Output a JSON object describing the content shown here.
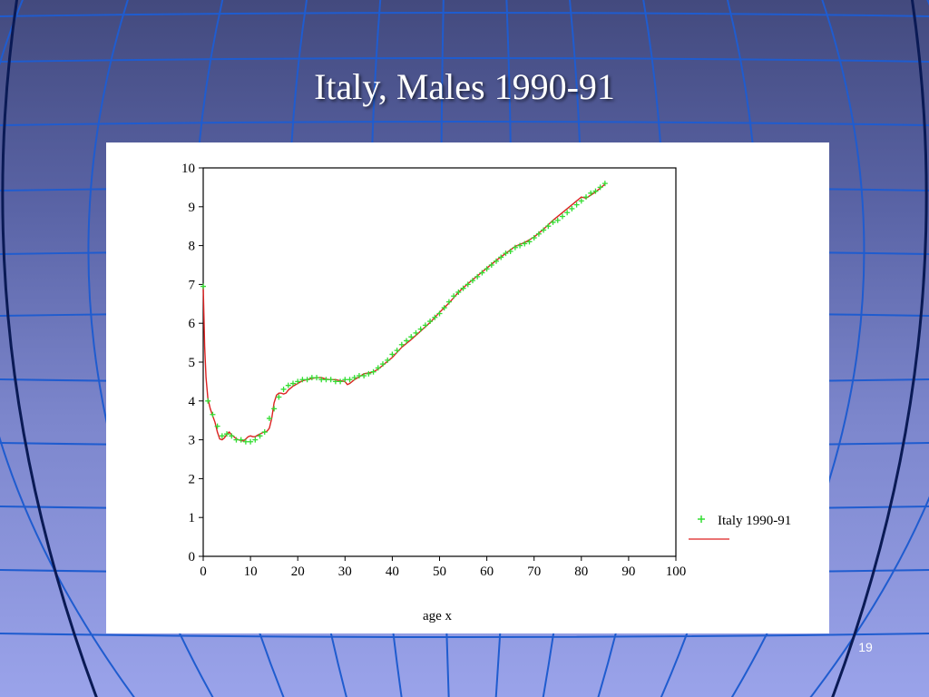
{
  "slide": {
    "title": "Italy, Males 1990-91",
    "page_number": "19"
  },
  "colors": {
    "background_top": "#434a7e",
    "background_bottom": "#9aa3ea",
    "grid_lines": "#1f5ccf",
    "data_points": "#33dd33",
    "fitted_line": "#dd2222"
  },
  "chart_data": {
    "type": "scatter",
    "title": "",
    "xlabel": "age x",
    "ylabel": "",
    "xlim": [
      0,
      100
    ],
    "ylim": [
      0,
      10
    ],
    "x_ticks": [
      0,
      10,
      20,
      30,
      40,
      50,
      60,
      70,
      80,
      90,
      100
    ],
    "y_ticks": [
      0,
      1,
      2,
      3,
      4,
      5,
      6,
      7,
      8,
      9,
      10
    ],
    "grid": false,
    "legend_position": "right",
    "series": [
      {
        "name": "Italy 1990-91",
        "marker": "plus",
        "x": [
          0,
          1,
          2,
          3,
          4,
          5,
          6,
          7,
          8,
          9,
          10,
          11,
          12,
          13,
          14,
          15,
          16,
          17,
          18,
          19,
          20,
          21,
          22,
          23,
          24,
          25,
          26,
          27,
          28,
          29,
          30,
          31,
          32,
          33,
          34,
          35,
          36,
          37,
          38,
          39,
          40,
          41,
          42,
          43,
          44,
          45,
          46,
          47,
          48,
          49,
          50,
          51,
          52,
          53,
          54,
          55,
          56,
          57,
          58,
          59,
          60,
          61,
          62,
          63,
          64,
          65,
          66,
          67,
          68,
          69,
          70,
          71,
          72,
          73,
          74,
          75,
          76,
          77,
          78,
          79,
          80,
          81,
          82,
          83,
          84,
          85
        ],
        "y": [
          6.95,
          4.0,
          3.65,
          3.35,
          3.1,
          3.15,
          3.1,
          3.0,
          3.0,
          2.95,
          2.95,
          3.0,
          3.1,
          3.2,
          3.55,
          3.8,
          4.1,
          4.3,
          4.4,
          4.45,
          4.5,
          4.55,
          4.55,
          4.6,
          4.6,
          4.55,
          4.55,
          4.55,
          4.5,
          4.5,
          4.55,
          4.55,
          4.6,
          4.65,
          4.65,
          4.7,
          4.75,
          4.85,
          4.95,
          5.05,
          5.2,
          5.3,
          5.45,
          5.55,
          5.65,
          5.75,
          5.85,
          5.95,
          6.05,
          6.15,
          6.25,
          6.4,
          6.55,
          6.7,
          6.8,
          6.9,
          7.0,
          7.1,
          7.2,
          7.3,
          7.4,
          7.5,
          7.6,
          7.7,
          7.8,
          7.85,
          7.95,
          8.0,
          8.05,
          8.1,
          8.2,
          8.3,
          8.4,
          8.5,
          8.6,
          8.65,
          8.75,
          8.85,
          8.95,
          9.05,
          9.15,
          9.25,
          9.35,
          9.4,
          9.5,
          9.6
        ]
      },
      {
        "name": "",
        "marker": "line",
        "x": [
          0,
          0.3,
          0.6,
          1,
          1.5,
          2,
          2.5,
          3,
          3.5,
          4,
          4.5,
          5,
          5.5,
          6,
          6.5,
          7,
          7.5,
          8,
          8.5,
          9,
          9.5,
          10,
          10.5,
          11,
          11.5,
          12,
          12.5,
          13,
          13.5,
          14,
          14.5,
          15,
          15.5,
          16,
          16.5,
          17,
          17.5,
          18,
          19,
          20,
          21,
          22,
          23,
          24,
          25,
          26,
          27,
          28,
          29,
          30,
          30.5,
          31,
          32,
          33,
          34,
          35,
          36,
          37,
          38,
          39,
          40,
          42,
          44,
          46,
          48,
          50,
          52,
          54,
          56,
          58,
          60,
          62,
          64,
          66,
          68,
          70,
          72,
          74,
          76,
          78,
          80,
          81,
          82,
          83,
          84,
          85
        ],
        "y": [
          6.95,
          5.4,
          4.6,
          4.05,
          3.8,
          3.62,
          3.45,
          3.2,
          3.02,
          3.0,
          3.05,
          3.15,
          3.2,
          3.12,
          3.08,
          3.02,
          3.0,
          2.98,
          2.97,
          3.02,
          3.08,
          3.1,
          3.08,
          3.08,
          3.12,
          3.15,
          3.18,
          3.2,
          3.22,
          3.3,
          3.55,
          3.95,
          4.15,
          4.2,
          4.2,
          4.18,
          4.2,
          4.28,
          4.38,
          4.45,
          4.52,
          4.55,
          4.58,
          4.6,
          4.6,
          4.56,
          4.55,
          4.55,
          4.52,
          4.5,
          4.42,
          4.45,
          4.55,
          4.62,
          4.7,
          4.72,
          4.75,
          4.82,
          4.92,
          5.02,
          5.12,
          5.38,
          5.58,
          5.8,
          6.02,
          6.28,
          6.52,
          6.8,
          7.02,
          7.22,
          7.42,
          7.62,
          7.8,
          7.98,
          8.08,
          8.22,
          8.42,
          8.65,
          8.85,
          9.05,
          9.25,
          9.22,
          9.3,
          9.38,
          9.48,
          9.58
        ]
      }
    ]
  }
}
